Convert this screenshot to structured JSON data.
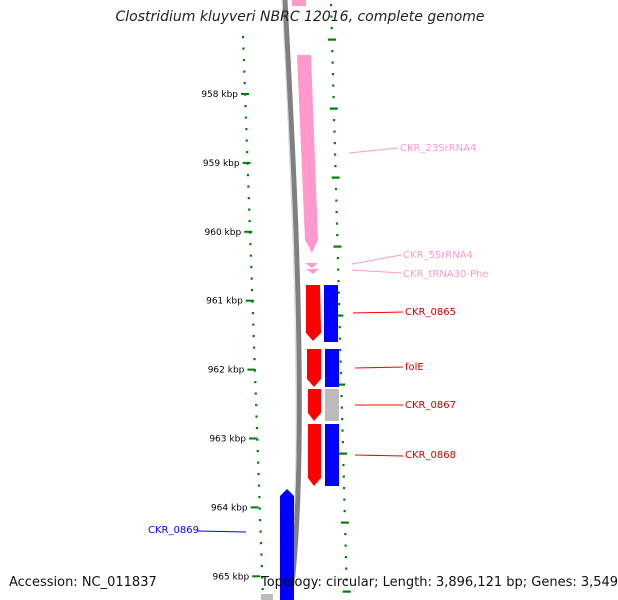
{
  "title": "Clostridium kluyveri NBRC 12016, complete genome",
  "accession": "Accession: NC_011837",
  "topology": "Topology: circular; Length: 3,896,121 bp; Genes: 3,549",
  "ticks": [
    {
      "label": "958 kbp"
    },
    {
      "label": "959 kbp"
    },
    {
      "label": "960 kbp"
    },
    {
      "label": "961 kbp"
    },
    {
      "label": "962 kbp"
    },
    {
      "label": "963 kbp"
    },
    {
      "label": "964 kbp"
    },
    {
      "label": "965 kbp"
    }
  ],
  "features": [
    {
      "label": "CKR_23SrRNA4",
      "color": "#ff99cc",
      "strand": "reverse",
      "track": "rna"
    },
    {
      "label": "CKR_5SrRNA4",
      "color": "#ff99cc",
      "strand": "reverse",
      "track": "rna"
    },
    {
      "label": "CKR_tRNA30-Phe",
      "color": "#ff99cc",
      "strand": "reverse",
      "track": "rna"
    },
    {
      "label": "CKR_0865",
      "color": "#ff0000",
      "strand": "reverse",
      "track": "cds"
    },
    {
      "label": "folE",
      "color": "#ff0000",
      "strand": "reverse",
      "track": "cds"
    },
    {
      "label": "CKR_0867",
      "color": "#ff0000",
      "strand": "reverse",
      "track": "cds"
    },
    {
      "label": "CKR_0868",
      "color": "#ff0000",
      "strand": "reverse",
      "track": "cds"
    },
    {
      "label": "CKR_0869",
      "color": "#0000ff",
      "strand": "forward",
      "track": "cds"
    }
  ],
  "colors": {
    "backbone": "#808080",
    "gc_ticks": "#008000",
    "rrna": "#ff99cc",
    "cds_reverse": "#ff0000",
    "cds_forward_track": "#0000ff",
    "neutral": "#bbbbbb"
  }
}
